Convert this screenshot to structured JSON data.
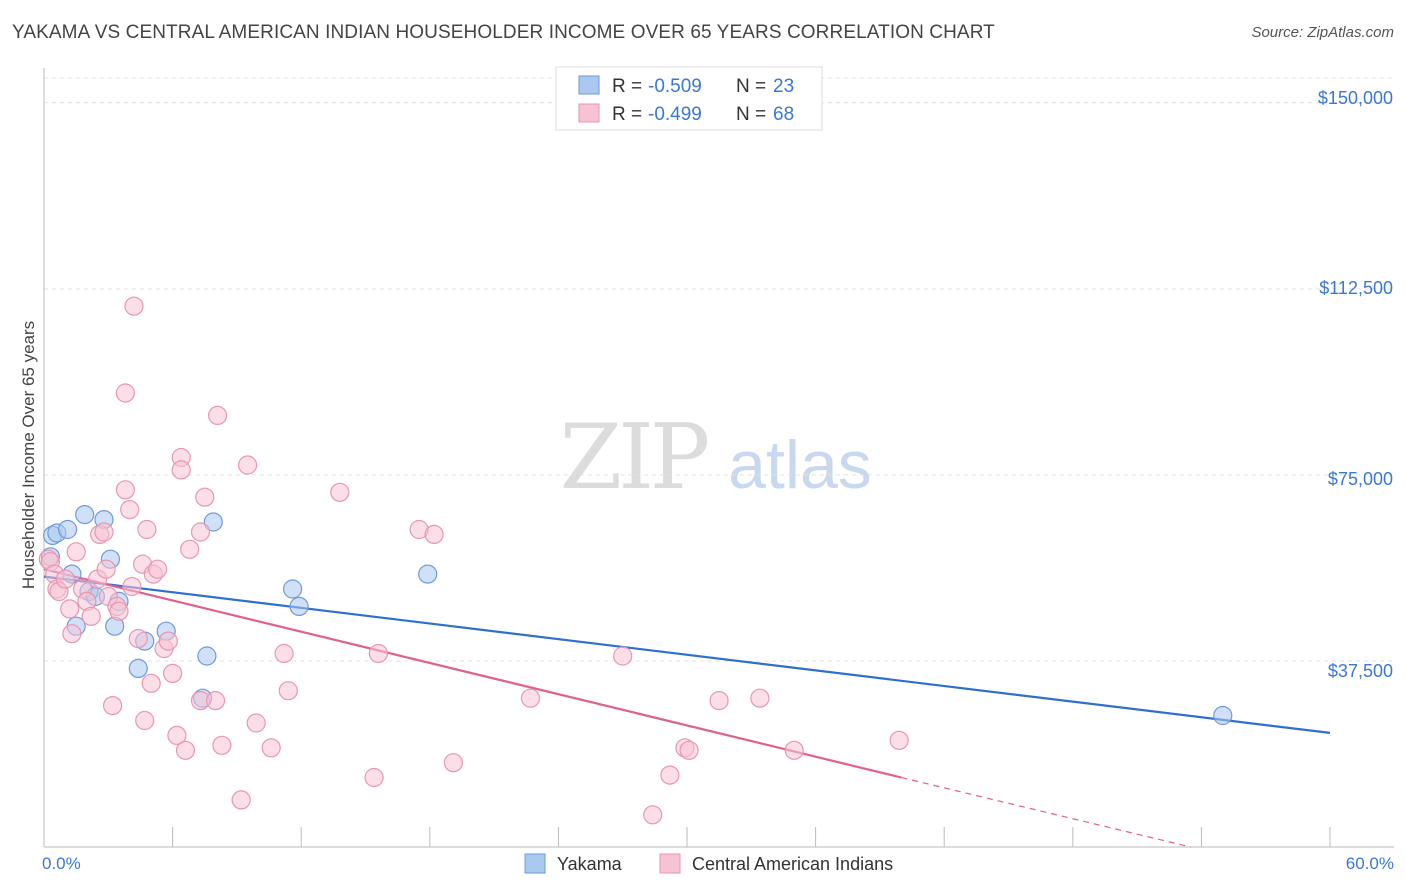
{
  "chart_data": {
    "type": "scatter",
    "title": "YAKAMA VS CENTRAL AMERICAN INDIAN HOUSEHOLDER INCOME OVER 65 YEARS CORRELATION CHART",
    "source": "Source: ZipAtlas.com",
    "xlabel": "",
    "ylabel": "Householder Income Over 65 years",
    "xlim": [
      0,
      60
    ],
    "ylim": [
      0,
      155000
    ],
    "x_tick_labels": [
      "0.0%",
      "60.0%"
    ],
    "y_ticks": [
      37500,
      75000,
      112500,
      150000
    ],
    "y_tick_labels": [
      "$37,500",
      "$75,000",
      "$112,500",
      "$150,000"
    ],
    "watermark": {
      "zip": "ZIP",
      "atlas": "atlas"
    },
    "legend_stats": [
      {
        "r_label": "R =",
        "r_value": "-0.509",
        "n_label": "N =",
        "n_value": "23"
      },
      {
        "r_label": "R =",
        "r_value": "-0.499",
        "n_label": "N =",
        "n_value": "68"
      }
    ],
    "series": [
      {
        "name": "Yakama",
        "fill": "#aac8f0",
        "stroke": "#6f9ad8",
        "line_color": "#2e6fd0",
        "trend": {
          "x0": 0,
          "y0": 54500,
          "x1": 60,
          "y1": 23000
        },
        "points": [
          [
            0.3,
            58500
          ],
          [
            0.4,
            62800
          ],
          [
            0.6,
            63300
          ],
          [
            1.1,
            64000
          ],
          [
            1.3,
            55000
          ],
          [
            1.5,
            44500
          ],
          [
            1.9,
            67000
          ],
          [
            2.1,
            51500
          ],
          [
            2.4,
            50500
          ],
          [
            2.8,
            66000
          ],
          [
            3.1,
            58000
          ],
          [
            3.3,
            44500
          ],
          [
            3.5,
            49500
          ],
          [
            4.4,
            36000
          ],
          [
            4.7,
            41500
          ],
          [
            5.7,
            43500
          ],
          [
            7.4,
            30000
          ],
          [
            7.6,
            38500
          ],
          [
            7.9,
            65500
          ],
          [
            11.6,
            52000
          ],
          [
            11.9,
            48500
          ],
          [
            17.9,
            55000
          ],
          [
            55.0,
            26500
          ]
        ]
      },
      {
        "name": "Central American Indians",
        "fill": "#f7c3d4",
        "stroke": "#e896b2",
        "line_color": "#e06090",
        "trend": {
          "x0": 0,
          "y0": 56000,
          "x1": 40,
          "y1": 14000
        },
        "trend_dashed": {
          "x0": 40,
          "y0": 14000,
          "x1": 53.5,
          "y1": 0
        },
        "points": [
          [
            0.2,
            58000
          ],
          [
            0.3,
            57500
          ],
          [
            0.5,
            55000
          ],
          [
            0.6,
            52000
          ],
          [
            0.7,
            51500
          ],
          [
            1.0,
            54000
          ],
          [
            1.2,
            48000
          ],
          [
            1.3,
            43000
          ],
          [
            1.5,
            59500
          ],
          [
            1.8,
            52000
          ],
          [
            2.0,
            49500
          ],
          [
            2.2,
            46500
          ],
          [
            2.5,
            54000
          ],
          [
            2.6,
            63000
          ],
          [
            2.8,
            63500
          ],
          [
            2.9,
            56000
          ],
          [
            3.0,
            50500
          ],
          [
            3.2,
            28500
          ],
          [
            3.4,
            48500
          ],
          [
            3.5,
            47500
          ],
          [
            3.8,
            91500
          ],
          [
            3.8,
            72000
          ],
          [
            4.0,
            68000
          ],
          [
            4.1,
            52500
          ],
          [
            4.2,
            109000
          ],
          [
            4.4,
            42000
          ],
          [
            4.6,
            57000
          ],
          [
            4.7,
            25500
          ],
          [
            4.8,
            64000
          ],
          [
            5.0,
            33000
          ],
          [
            5.1,
            55000
          ],
          [
            5.3,
            56000
          ],
          [
            5.6,
            40000
          ],
          [
            5.8,
            41500
          ],
          [
            6.0,
            35000
          ],
          [
            6.2,
            22500
          ],
          [
            6.4,
            78500
          ],
          [
            6.4,
            76000
          ],
          [
            6.6,
            19500
          ],
          [
            6.8,
            60000
          ],
          [
            7.3,
            29500
          ],
          [
            7.3,
            63500
          ],
          [
            7.5,
            70500
          ],
          [
            8.0,
            29500
          ],
          [
            8.1,
            87000
          ],
          [
            8.3,
            20500
          ],
          [
            9.2,
            9500
          ],
          [
            9.5,
            77000
          ],
          [
            9.9,
            25000
          ],
          [
            10.6,
            20000
          ],
          [
            11.2,
            39000
          ],
          [
            11.4,
            31500
          ],
          [
            13.8,
            71500
          ],
          [
            15.4,
            14000
          ],
          [
            15.6,
            39000
          ],
          [
            17.5,
            64000
          ],
          [
            18.2,
            63000
          ],
          [
            19.1,
            17000
          ],
          [
            22.7,
            30000
          ],
          [
            27.0,
            38500
          ],
          [
            28.4,
            6500
          ],
          [
            29.2,
            14500
          ],
          [
            29.9,
            20000
          ],
          [
            30.1,
            19500
          ],
          [
            31.5,
            29500
          ],
          [
            33.4,
            30000
          ],
          [
            35.0,
            19500
          ],
          [
            39.9,
            21500
          ]
        ]
      }
    ]
  }
}
